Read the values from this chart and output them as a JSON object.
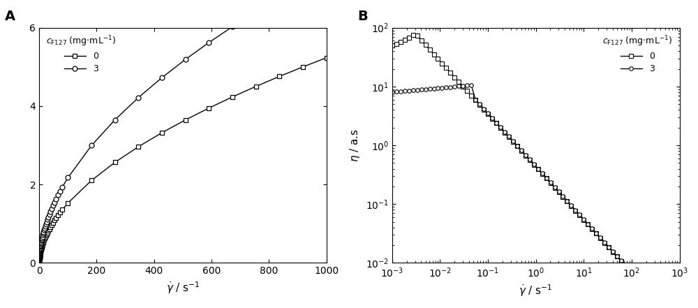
{
  "title_A": "A",
  "title_B": "B",
  "xlabel": "$\\dot{\\gamma}$ / s$^{-1}$",
  "ylabel_A": "",
  "ylabel_B": "$\\eta$ / a.s",
  "legend_title": "$c_{\\mathrm{F127}}$ (mg$\\cdot$mL$^{-1}$)",
  "legend_labels": [
    "0",
    "3"
  ],
  "panel_A": {
    "xlim": [
      0,
      1000
    ],
    "ylim": [
      0,
      6
    ],
    "xticks": [
      0,
      200,
      400,
      600,
      800,
      1000
    ],
    "yticks": [
      0,
      2,
      4,
      6
    ]
  },
  "panel_B": {
    "xlim": [
      0.001,
      1000.0
    ],
    "ylim": [
      0.01,
      100.0
    ]
  }
}
